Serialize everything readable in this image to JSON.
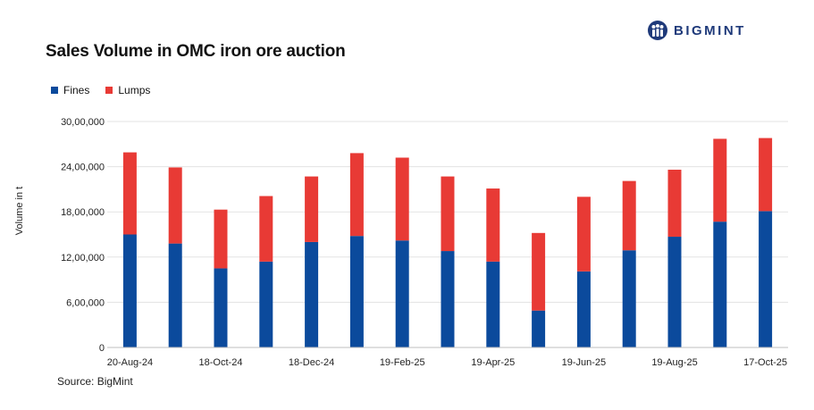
{
  "brand": {
    "name": "BIGMINT",
    "color": "#1f3a7a"
  },
  "source": "Source: BigMint",
  "chart_data": {
    "type": "bar",
    "stacked": true,
    "title": "Sales Volume in OMC iron ore auction",
    "ylabel": "Volume in t",
    "xlabel": "",
    "ylim": [
      0,
      3000000
    ],
    "yticks": [
      0,
      600000,
      1200000,
      1800000,
      2400000,
      3000000
    ],
    "ytick_labels": [
      "0",
      "6,00,000",
      "12,00,000",
      "18,00,000",
      "24,00,000",
      "30,00,000"
    ],
    "grid": true,
    "legend_position": "top-left",
    "categories": [
      "20-Aug-24",
      "",
      "18-Oct-24",
      "",
      "18-Dec-24",
      "",
      "19-Feb-25",
      "",
      "19-Apr-25",
      "",
      "19-Jun-25",
      "",
      "19-Aug-25",
      "",
      "17-Oct-25"
    ],
    "series": [
      {
        "name": "Fines",
        "color": "#0b4a9c",
        "values": [
          1500000,
          1380000,
          1050000,
          1140000,
          1400000,
          1480000,
          1420000,
          1280000,
          1140000,
          490000,
          1010000,
          1290000,
          1470000,
          1670000,
          1810000
        ]
      },
      {
        "name": "Lumps",
        "color": "#e83a35",
        "values": [
          1090000,
          1010000,
          780000,
          870000,
          870000,
          1100000,
          1100000,
          990000,
          970000,
          1030000,
          990000,
          920000,
          890000,
          1100000,
          970000
        ]
      }
    ]
  }
}
